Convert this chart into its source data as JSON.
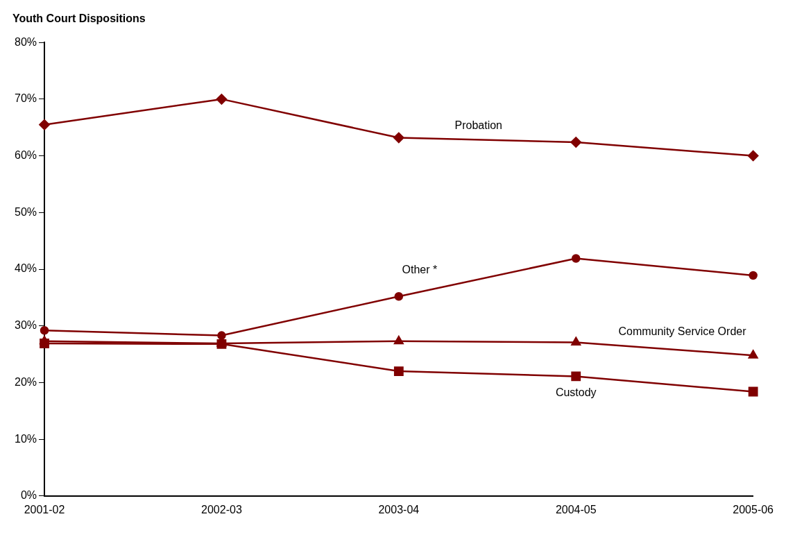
{
  "chart_data": {
    "type": "line",
    "title": "Youth Court Dispositions",
    "categories": [
      "2001-02",
      "2002-03",
      "2003-04",
      "2004-05",
      "2005-06"
    ],
    "series": [
      {
        "name": "Probation",
        "color": "#800000",
        "marker": "diamond",
        "values": [
          65.5,
          70,
          63.2,
          62.4,
          60
        ]
      },
      {
        "name": "Other *",
        "color": "#800000",
        "marker": "circle",
        "values": [
          29.2,
          28.3,
          35.2,
          41.9,
          38.9
        ]
      },
      {
        "name": "Community Service Order",
        "color": "#800000",
        "marker": "triangle",
        "values": [
          27.3,
          26.9,
          27.3,
          27.1,
          24.8
        ]
      },
      {
        "name": "Custody",
        "color": "#800000",
        "marker": "square",
        "values": [
          26.9,
          26.8,
          22,
          21.1,
          18.4
        ]
      }
    ],
    "ylim": [
      0,
      80
    ],
    "yticks": [
      {
        "value": 0,
        "label": "0%"
      },
      {
        "value": 10,
        "label": "10%"
      },
      {
        "value": 20,
        "label": "20%"
      },
      {
        "value": 30,
        "label": "30%"
      },
      {
        "value": 40,
        "label": "40%"
      },
      {
        "value": 50,
        "label": "50%"
      },
      {
        "value": 60,
        "label": "60%"
      },
      {
        "value": 70,
        "label": "70%"
      },
      {
        "value": 80,
        "label": "80%"
      }
    ],
    "grid": false,
    "legend": false,
    "line_style": "solid"
  }
}
